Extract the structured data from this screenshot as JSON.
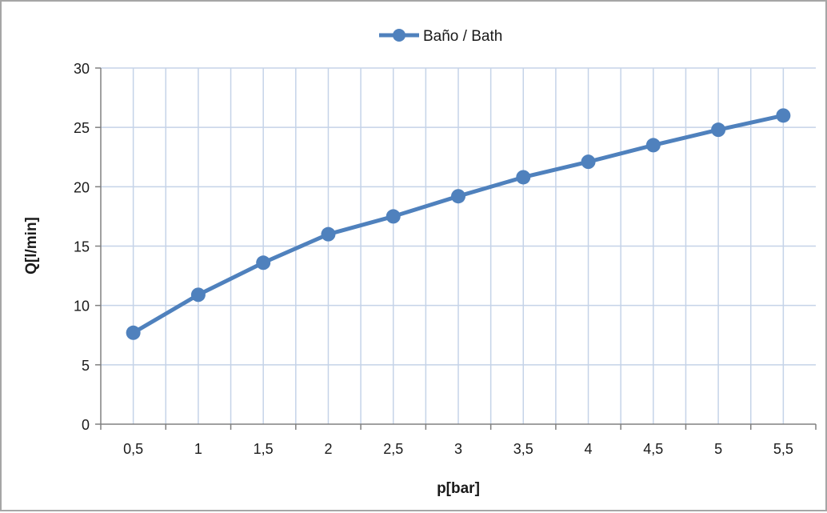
{
  "chart_data": {
    "type": "line",
    "title": "",
    "xlabel": "p[bar]",
    "ylabel": "Q[l/min]",
    "categories": [
      "0,5",
      "1",
      "1,5",
      "2",
      "2,5",
      "3",
      "3,5",
      "4",
      "4,5",
      "5",
      "5,5"
    ],
    "series": [
      {
        "name": "Baño / Bath",
        "values": [
          7.7,
          10.9,
          13.6,
          16.0,
          17.5,
          19.2,
          20.8,
          22.1,
          23.5,
          24.8,
          26.0
        ]
      }
    ],
    "ylim": [
      0,
      30
    ],
    "yticks": [
      0,
      5,
      10,
      15,
      20,
      25,
      30
    ],
    "grid": true,
    "legend_position": "top",
    "colors": {
      "series": "#4f81bd",
      "grid": "#c5d3e8",
      "axis": "#808080"
    }
  }
}
